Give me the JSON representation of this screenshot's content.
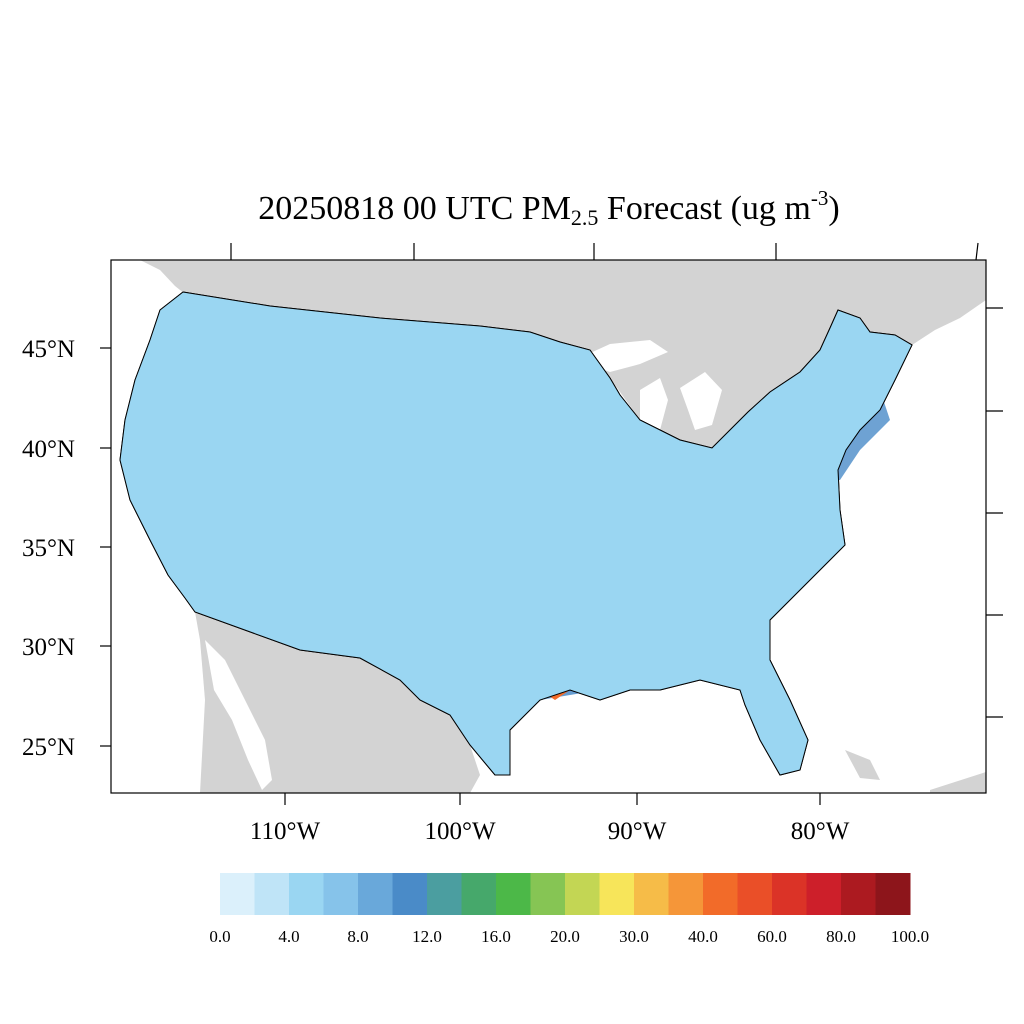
{
  "title": {
    "date_time": "20250818 00 UTC PM",
    "subscript": "2.5",
    "forecast_unit_prefix": " Forecast (ug m",
    "superscript": "-3",
    "suffix": ")"
  },
  "map": {
    "latitude_labels": [
      "45°N",
      "40°N",
      "35°N",
      "30°N",
      "25°N"
    ],
    "longitude_labels": [
      "110°W",
      "100°W",
      "90°W",
      "80°W"
    ],
    "colors": {
      "land_outside": "#d3d3d3",
      "water": "#ffffff",
      "county_border": "#000000"
    }
  },
  "colorbar": {
    "colors": [
      "#dbf0fb",
      "#bfe4f7",
      "#9ad6f2",
      "#86c3ea",
      "#69a8da",
      "#4a8bc8",
      "#4b9ea0",
      "#46a86b",
      "#4cb848",
      "#86c554",
      "#c3d654",
      "#f7e55a",
      "#f6bc48",
      "#f59639",
      "#f26b29",
      "#ea4f28",
      "#db3327",
      "#cd1f2a",
      "#ac1a20",
      "#8d151b"
    ],
    "tick_labels": [
      "0.0",
      "4.0",
      "8.0",
      "12.0",
      "16.0",
      "20.0",
      "30.0",
      "40.0",
      "60.0",
      "80.0",
      "100.0"
    ]
  }
}
